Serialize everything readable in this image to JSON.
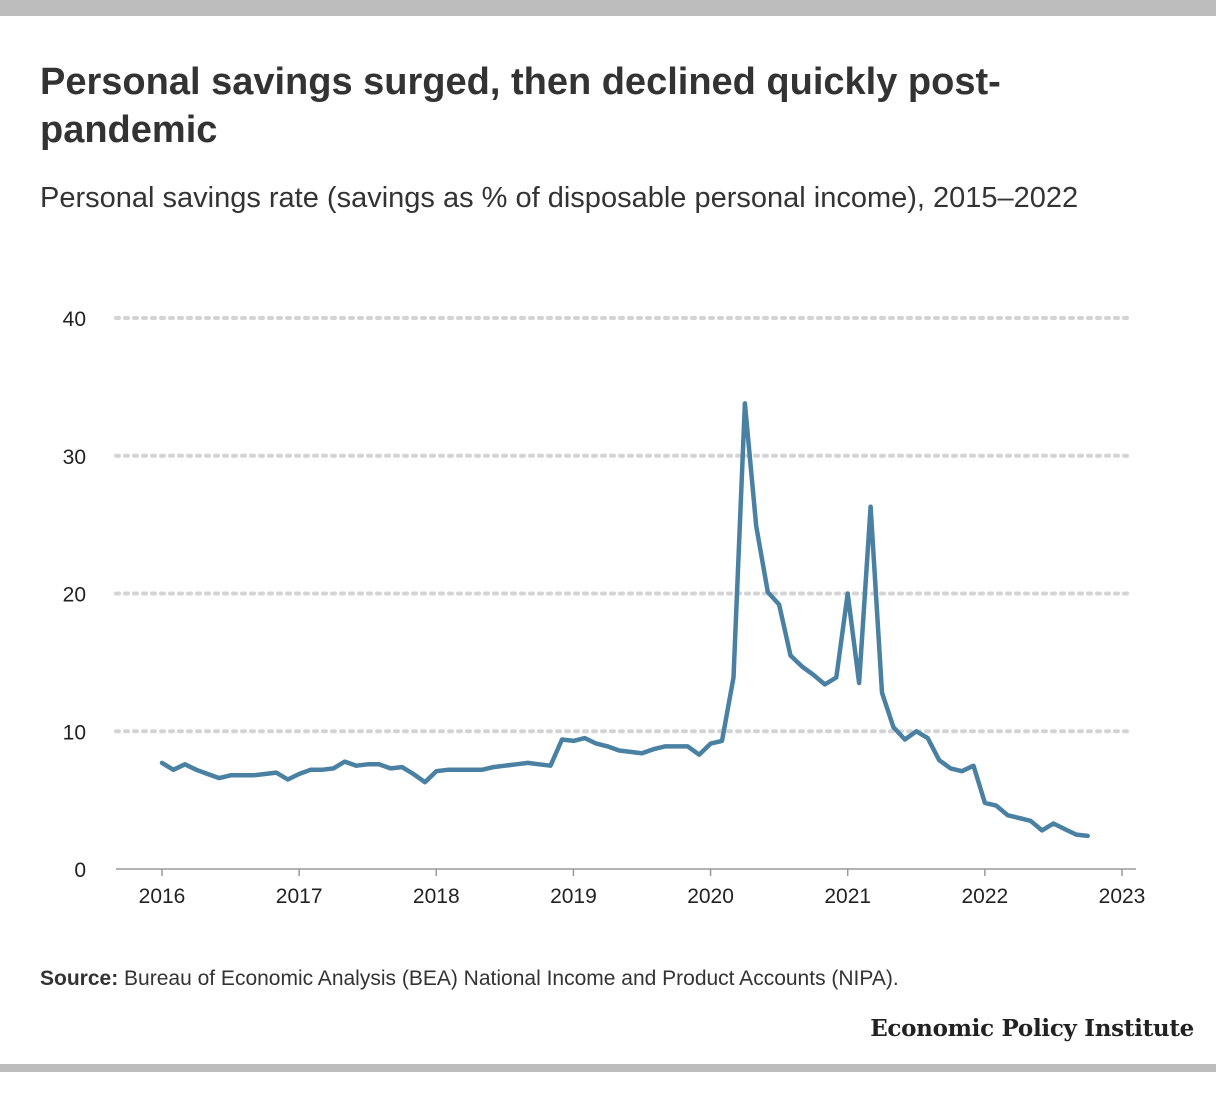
{
  "title": "Personal savings surged, then declined quickly post-pandemic",
  "subtitle": "Personal savings rate (savings as % of disposable personal income), 2015–2022",
  "source": {
    "label": "Source:",
    "text": "Bureau of Economic Analysis (BEA) National Income and Product Accounts (NIPA)."
  },
  "brand": "Economic Policy Institute",
  "colors": {
    "line": "#4a81a3",
    "grid": "#d4d4d4",
    "axis": "#999999",
    "bars": "#bdbdbd"
  },
  "chart_data": {
    "type": "line",
    "title": "",
    "xlabel": "",
    "ylabel": "",
    "xlim": [
      2015.67,
      2023.1
    ],
    "ylim": [
      0,
      40
    ],
    "y_ticks": [
      0,
      10,
      20,
      30,
      40
    ],
    "x_ticks": [
      2016,
      2017,
      2018,
      2019,
      2020,
      2021,
      2022,
      2023
    ],
    "grid": "horizontal-dotted",
    "legend": "none",
    "series": [
      {
        "name": "",
        "x": [
          2016.0,
          2016.083,
          2016.167,
          2016.25,
          2016.333,
          2016.417,
          2016.5,
          2016.583,
          2016.667,
          2016.75,
          2016.833,
          2016.917,
          2017.0,
          2017.083,
          2017.167,
          2017.25,
          2017.333,
          2017.417,
          2017.5,
          2017.583,
          2017.667,
          2017.75,
          2017.833,
          2017.917,
          2018.0,
          2018.083,
          2018.167,
          2018.25,
          2018.333,
          2018.417,
          2018.5,
          2018.583,
          2018.667,
          2018.75,
          2018.833,
          2018.917,
          2019.0,
          2019.083,
          2019.167,
          2019.25,
          2019.333,
          2019.417,
          2019.5,
          2019.583,
          2019.667,
          2019.75,
          2019.833,
          2019.917,
          2020.0,
          2020.083,
          2020.167,
          2020.25,
          2020.333,
          2020.417,
          2020.5,
          2020.583,
          2020.667,
          2020.75,
          2020.833,
          2020.917,
          2021.0,
          2021.083,
          2021.167,
          2021.25,
          2021.333,
          2021.417,
          2021.5,
          2021.583,
          2021.667,
          2021.75,
          2021.833,
          2021.917,
          2022.0,
          2022.083,
          2022.167,
          2022.25,
          2022.333,
          2022.417,
          2022.5,
          2022.583,
          2022.667,
          2022.75
        ],
        "y": [
          7.7,
          7.2,
          7.6,
          7.2,
          6.9,
          6.6,
          6.8,
          6.8,
          6.8,
          6.9,
          7.0,
          6.5,
          6.9,
          7.2,
          7.2,
          7.3,
          7.8,
          7.5,
          7.6,
          7.6,
          7.3,
          7.4,
          6.9,
          6.3,
          7.1,
          7.2,
          7.2,
          7.2,
          7.2,
          7.4,
          7.5,
          7.6,
          7.7,
          7.6,
          7.5,
          9.4,
          9.3,
          9.5,
          9.1,
          8.9,
          8.6,
          8.5,
          8.4,
          8.7,
          8.9,
          8.9,
          8.9,
          8.3,
          9.1,
          9.3,
          13.9,
          33.8,
          24.9,
          20.1,
          19.2,
          15.5,
          14.7,
          14.1,
          13.4,
          13.9,
          20.0,
          13.5,
          26.3,
          12.8,
          10.3,
          9.4,
          10.0,
          9.5,
          7.9,
          7.3,
          7.1,
          7.5,
          4.8,
          4.6,
          3.9,
          3.7,
          3.5,
          2.8,
          3.3,
          2.9,
          2.5,
          2.4
        ]
      }
    ]
  }
}
